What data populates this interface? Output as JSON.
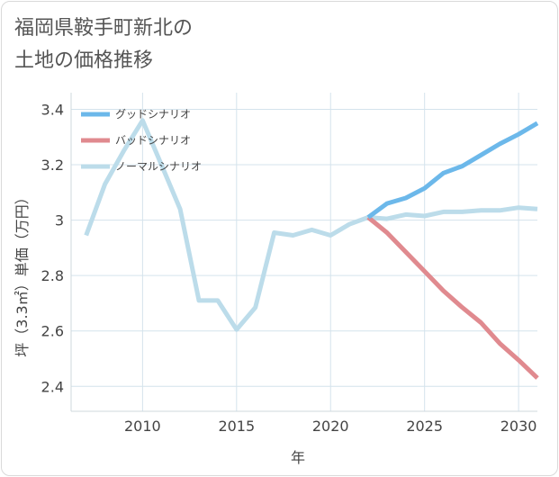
{
  "title_lines": [
    "福岡県鞍手町新北の",
    "土地の価格推移"
  ],
  "colors": {
    "good": "#6cb8ea",
    "bad": "#e08a8f",
    "normal": "#bcdcea",
    "grid": "#d4e3ec",
    "frame": "#d9d9d9"
  },
  "chart_data": {
    "type": "line",
    "title": "福岡県鞍手町新北の土地の価格推移",
    "xlabel": "年",
    "ylabel": "坪（3.3㎡）単価（万円）",
    "xlim": [
      2006.2,
      2031
    ],
    "ylim": [
      2.31,
      3.46
    ],
    "x_ticks": [
      2010,
      2015,
      2020,
      2025,
      2030
    ],
    "x_tick_labels": [
      "2010",
      "2015",
      "2020",
      "2025",
      "2030"
    ],
    "y_ticks": [
      2.4,
      2.6,
      2.8,
      3.0,
      3.2,
      3.4
    ],
    "y_tick_labels": [
      "2.4",
      "2.6",
      "2.8",
      "3",
      "3.2",
      "3.4"
    ],
    "grid": true,
    "legend_position": "top-left",
    "series": [
      {
        "name": "グッドシナリオ",
        "color_key": "good",
        "x": [
          2022,
          2023,
          2024,
          2025,
          2026,
          2027,
          2028,
          2029,
          2030,
          2031
        ],
        "y": [
          3.01,
          3.06,
          3.08,
          3.115,
          3.17,
          3.195,
          3.235,
          3.275,
          3.31,
          3.35
        ]
      },
      {
        "name": "バッドシナリオ",
        "color_key": "bad",
        "x": [
          2022,
          2023,
          2024,
          2025,
          2026,
          2027,
          2028,
          2029,
          2030,
          2031
        ],
        "y": [
          3.01,
          2.955,
          2.885,
          2.815,
          2.745,
          2.685,
          2.63,
          2.555,
          2.495,
          2.43
        ]
      },
      {
        "name": "ノーマルシナリオ",
        "color_key": "normal",
        "x": [
          2007,
          2008,
          2009,
          2010,
          2011,
          2012,
          2013,
          2014,
          2015,
          2016,
          2017,
          2018,
          2019,
          2020,
          2021,
          2022,
          2023,
          2024,
          2025,
          2026,
          2027,
          2028,
          2029,
          2030,
          2031
        ],
        "y": [
          2.945,
          3.13,
          3.25,
          3.36,
          3.2,
          3.04,
          2.71,
          2.71,
          2.605,
          2.685,
          2.955,
          2.945,
          2.965,
          2.945,
          2.985,
          3.01,
          3.005,
          3.02,
          3.015,
          3.03,
          3.03,
          3.035,
          3.035,
          3.045,
          3.04
        ]
      }
    ]
  }
}
